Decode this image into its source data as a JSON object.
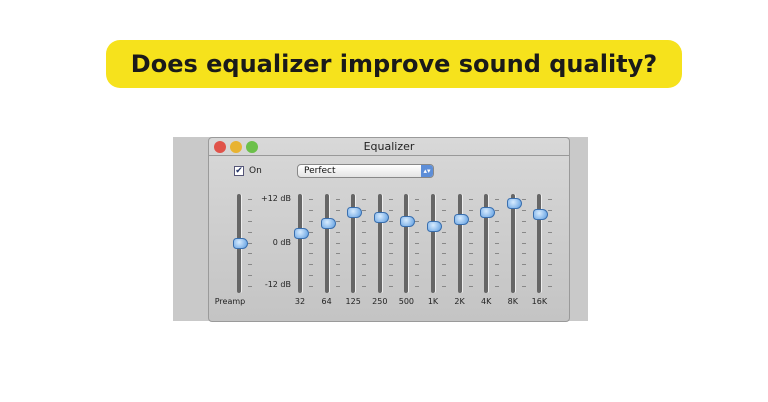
{
  "banner": {
    "title": "Does equalizer improve sound quality?",
    "background": "#f6e21c"
  },
  "window": {
    "title": "Equalizer",
    "on_label": "On",
    "on_checked": true,
    "preset": "Perfect"
  },
  "scale": {
    "top": "+12 dB",
    "mid": "0 dB",
    "bottom": "-12 dB"
  },
  "preamp": {
    "label": "Preamp",
    "value_db": 0
  },
  "bands": [
    {
      "label": "32",
      "value_db": 2.5
    },
    {
      "label": "64",
      "value_db": 5.5
    },
    {
      "label": "125",
      "value_db": 8.5
    },
    {
      "label": "250",
      "value_db": 7
    },
    {
      "label": "500",
      "value_db": 6
    },
    {
      "label": "1K",
      "value_db": 4.5
    },
    {
      "label": "2K",
      "value_db": 6.5
    },
    {
      "label": "4K",
      "value_db": 8.5
    },
    {
      "label": "8K",
      "value_db": 11
    },
    {
      "label": "16K",
      "value_db": 8
    }
  ]
}
